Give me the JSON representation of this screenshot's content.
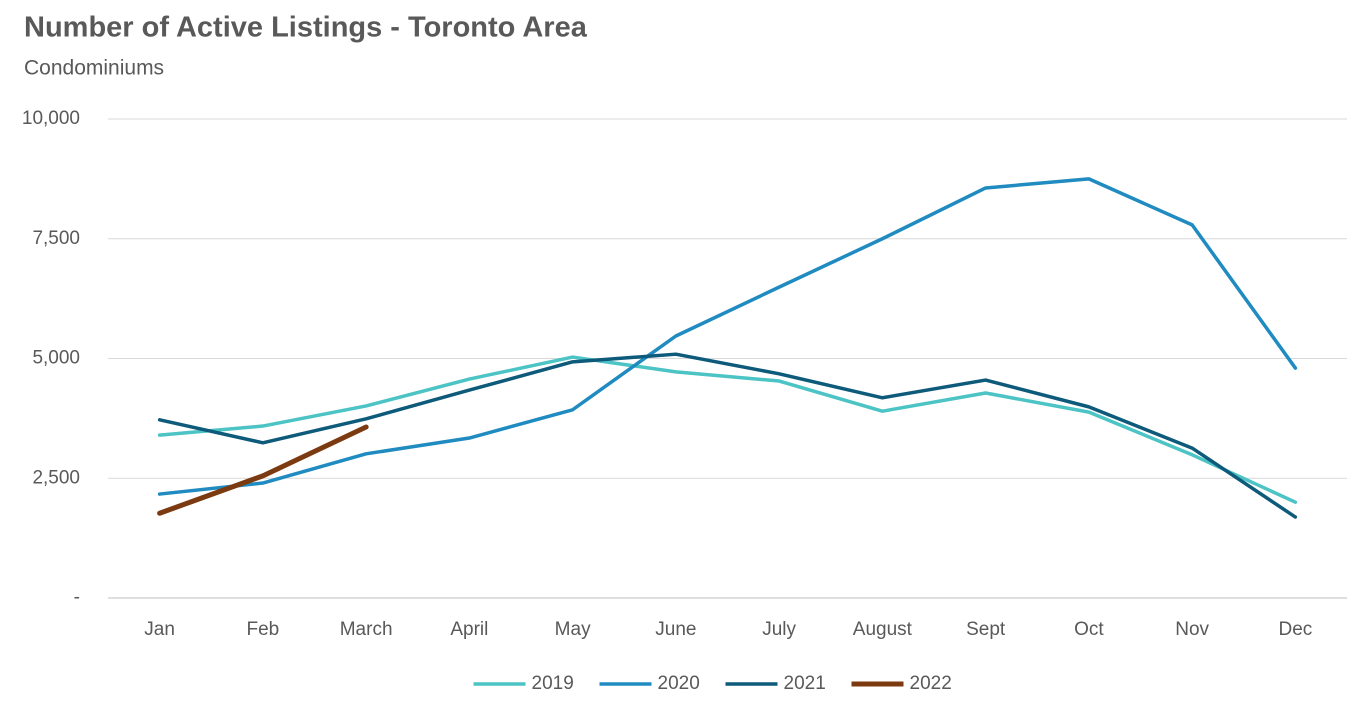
{
  "chart_data": {
    "type": "line",
    "title": "Number of Active Listings - Toronto Area",
    "subtitle": "Condominiums",
    "categories": [
      "Jan",
      "Feb",
      "March",
      "April",
      "May",
      "June",
      "July",
      "August",
      "Sept",
      "Oct",
      "Nov",
      "Dec"
    ],
    "series": [
      {
        "name": "2019",
        "color": "#4cc3c4",
        "values": [
          3400,
          3590,
          4010,
          4570,
          5030,
          4720,
          4530,
          3900,
          4280,
          3880,
          2990,
          2000
        ]
      },
      {
        "name": "2020",
        "color": "#1f8bc0",
        "values": [
          2170,
          2400,
          3010,
          3340,
          3930,
          5470,
          6490,
          7500,
          8560,
          8750,
          7790,
          4800
        ]
      },
      {
        "name": "2021",
        "color": "#0d5a7a",
        "values": [
          3720,
          3240,
          3740,
          4340,
          4930,
          5090,
          4680,
          4180,
          4550,
          3990,
          3130,
          1690
        ]
      },
      {
        "name": "2022",
        "color": "#7b3a10",
        "values": [
          1770,
          2550,
          3570,
          null,
          null,
          null,
          null,
          null,
          null,
          null,
          null,
          null
        ]
      }
    ],
    "ylim": [
      0,
      10000
    ],
    "yticks": [
      {
        "value": 0,
        "label": "-"
      },
      {
        "value": 2500,
        "label": "2,500"
      },
      {
        "value": 5000,
        "label": "5,000"
      },
      {
        "value": 7500,
        "label": "7,500"
      },
      {
        "value": 10000,
        "label": "10,000"
      }
    ],
    "grid": true,
    "legend": "bottom"
  }
}
